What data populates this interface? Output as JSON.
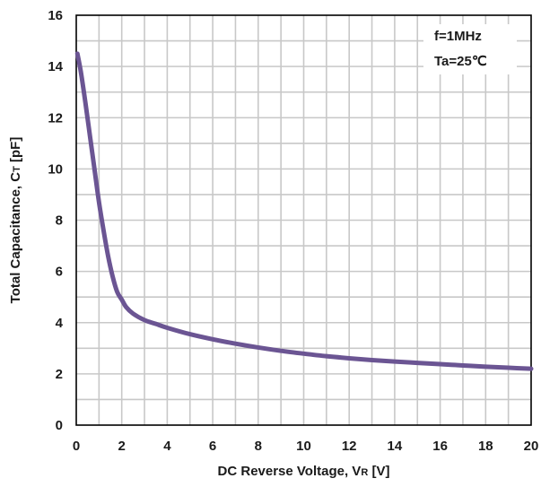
{
  "chart_data": {
    "type": "line",
    "xlabel": {
      "main": "DC Reverse Voltage, V",
      "sub": "R",
      "unit": " [V]"
    },
    "ylabel": {
      "main": "Total Capacitance, C",
      "sub": "T",
      "unit": " [pF]"
    },
    "xlim": [
      0,
      20
    ],
    "ylim": [
      0,
      16
    ],
    "x_ticks": [
      0,
      2,
      4,
      6,
      8,
      10,
      12,
      14,
      16,
      18,
      20
    ],
    "y_ticks": [
      0,
      2,
      4,
      6,
      8,
      10,
      12,
      14,
      16
    ],
    "x_grid_step": 1,
    "y_grid_step": 1,
    "grid": true,
    "annotations": [
      "f=1MHz",
      "Ta=25℃"
    ],
    "annotation_placement": "top-right",
    "series": [
      {
        "color": "#6b5593",
        "x": [
          0.05,
          0.2,
          0.4,
          0.6,
          0.8,
          1.0,
          1.2,
          1.4,
          1.6,
          1.8,
          2.0,
          2.2,
          2.5,
          3.0,
          3.5,
          4.0,
          5.0,
          6.0,
          7.0,
          8.0,
          9.0,
          10.0,
          11.0,
          12.0,
          13.0,
          14.0,
          15.0,
          16.0,
          17.0,
          18.0,
          19.0,
          20.0
        ],
        "y": [
          14.5,
          13.8,
          12.6,
          11.3,
          10.0,
          8.7,
          7.6,
          6.6,
          5.8,
          5.2,
          4.9,
          4.6,
          4.35,
          4.1,
          3.95,
          3.8,
          3.55,
          3.35,
          3.18,
          3.03,
          2.9,
          2.79,
          2.69,
          2.61,
          2.54,
          2.48,
          2.43,
          2.38,
          2.33,
          2.28,
          2.24,
          2.2
        ]
      }
    ]
  }
}
